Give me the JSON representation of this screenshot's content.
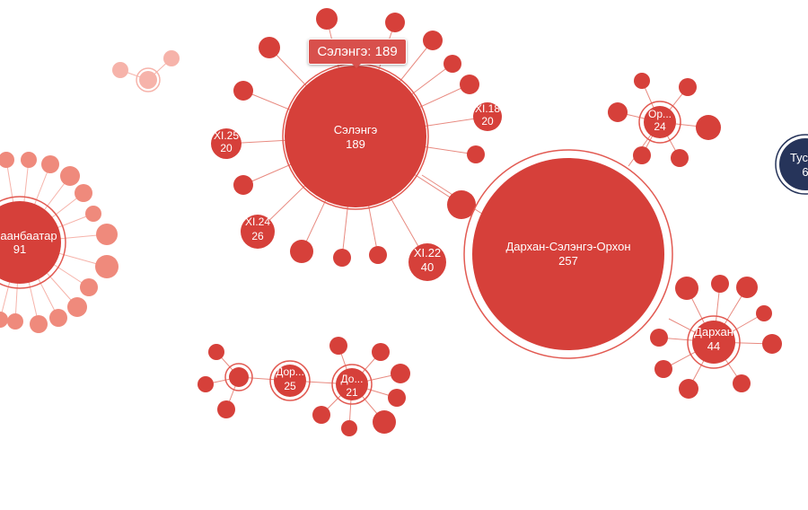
{
  "colors": {
    "node": "#d6403a",
    "node_light": "#ef8a7c",
    "node_faint": "#f6b3aa",
    "link": "#e88a80",
    "ring": "#e25a52",
    "dark_node": "#26345a"
  },
  "tooltip": {
    "text": "Сэлэнгэ: 189"
  },
  "nodes": {
    "ulaanbaatar": {
      "name": "аанбаатар",
      "value": "91"
    },
    "selenge": {
      "name": "Сэлэнгэ",
      "value": "189"
    },
    "xl25": {
      "name": "XI.25",
      "value": "20"
    },
    "xl18": {
      "name": "XI.18",
      "value": "20"
    },
    "xl24": {
      "name": "XI.24",
      "value": "26"
    },
    "xl22": {
      "name": "XI.22",
      "value": "40"
    },
    "darkhan_selenge_orkhon": {
      "name": "Дархан-Сэлэнгэ-Орхон",
      "value": "257"
    },
    "orkhon": {
      "name": "Ор...",
      "value": "24"
    },
    "darkhan": {
      "name": "Дархан",
      "value": "44"
    },
    "tusgai": {
      "name": "Тус",
      "value": "6"
    },
    "dornod": {
      "name": "Дор...",
      "value": "25"
    },
    "dornogovi": {
      "name": "До...",
      "value": "21"
    }
  }
}
